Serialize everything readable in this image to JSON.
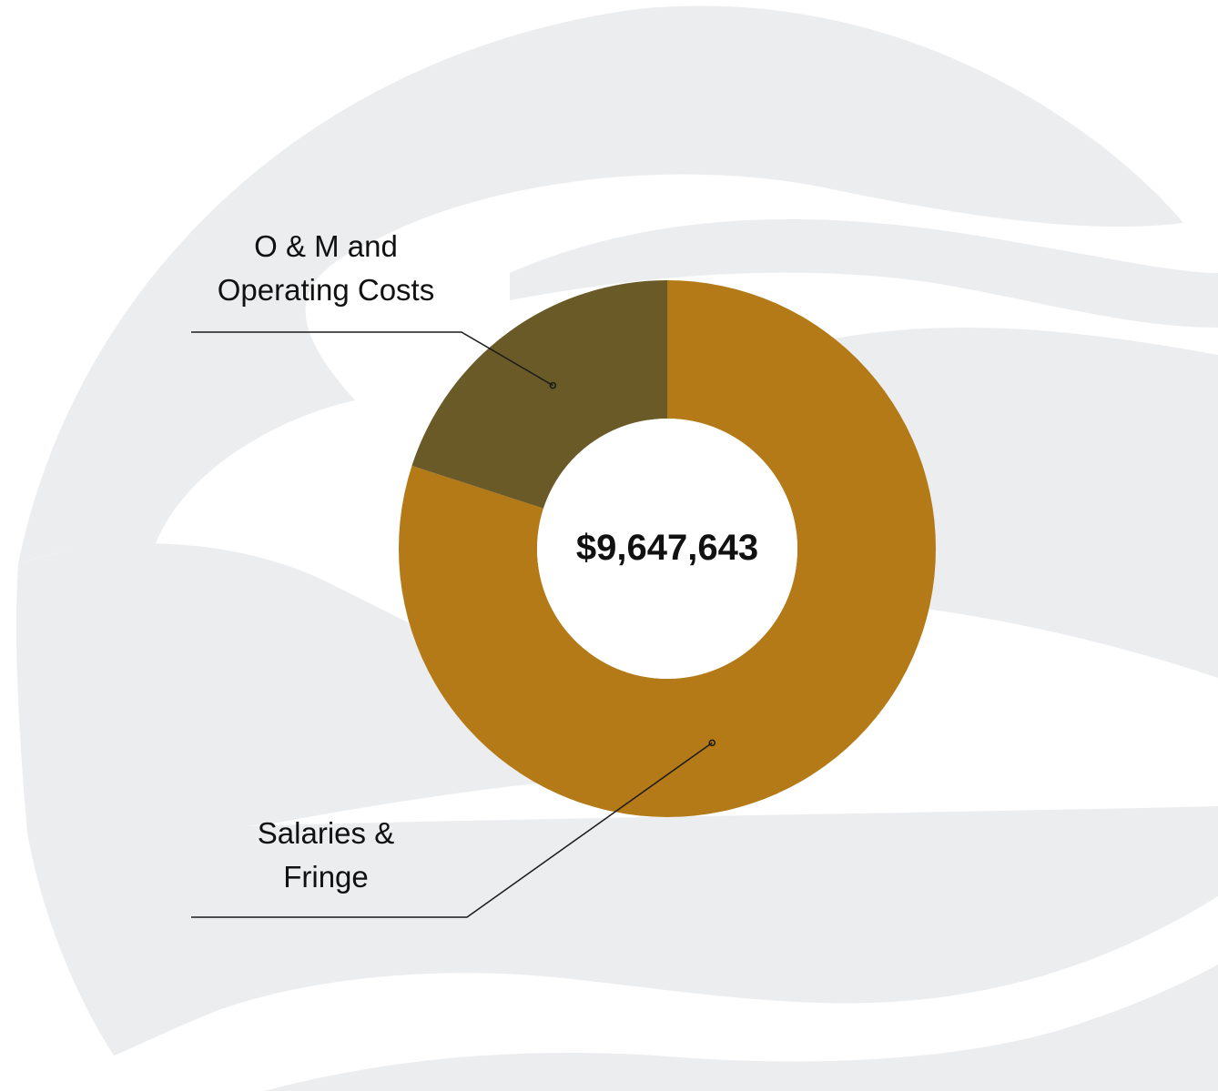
{
  "colors": {
    "background": "#ffffff",
    "background_shape": "#ecedef",
    "salaries": "#b47a17",
    "om": "#695a27",
    "leader_line": "#1a1a1a"
  },
  "chart_data": {
    "type": "donut",
    "title": "",
    "center_label": "$9,647,643",
    "series": [
      {
        "name": "Salaries & Fringe",
        "label_lines": [
          "Salaries &",
          "Fringe"
        ],
        "share": 0.8,
        "color": "#b47a17"
      },
      {
        "name": "O & M and Operating Costs",
        "label_lines": [
          "O & M and",
          "Operating Costs"
        ],
        "share": 0.2,
        "color": "#695a27"
      }
    ],
    "legend": "leader-line labels on left"
  }
}
